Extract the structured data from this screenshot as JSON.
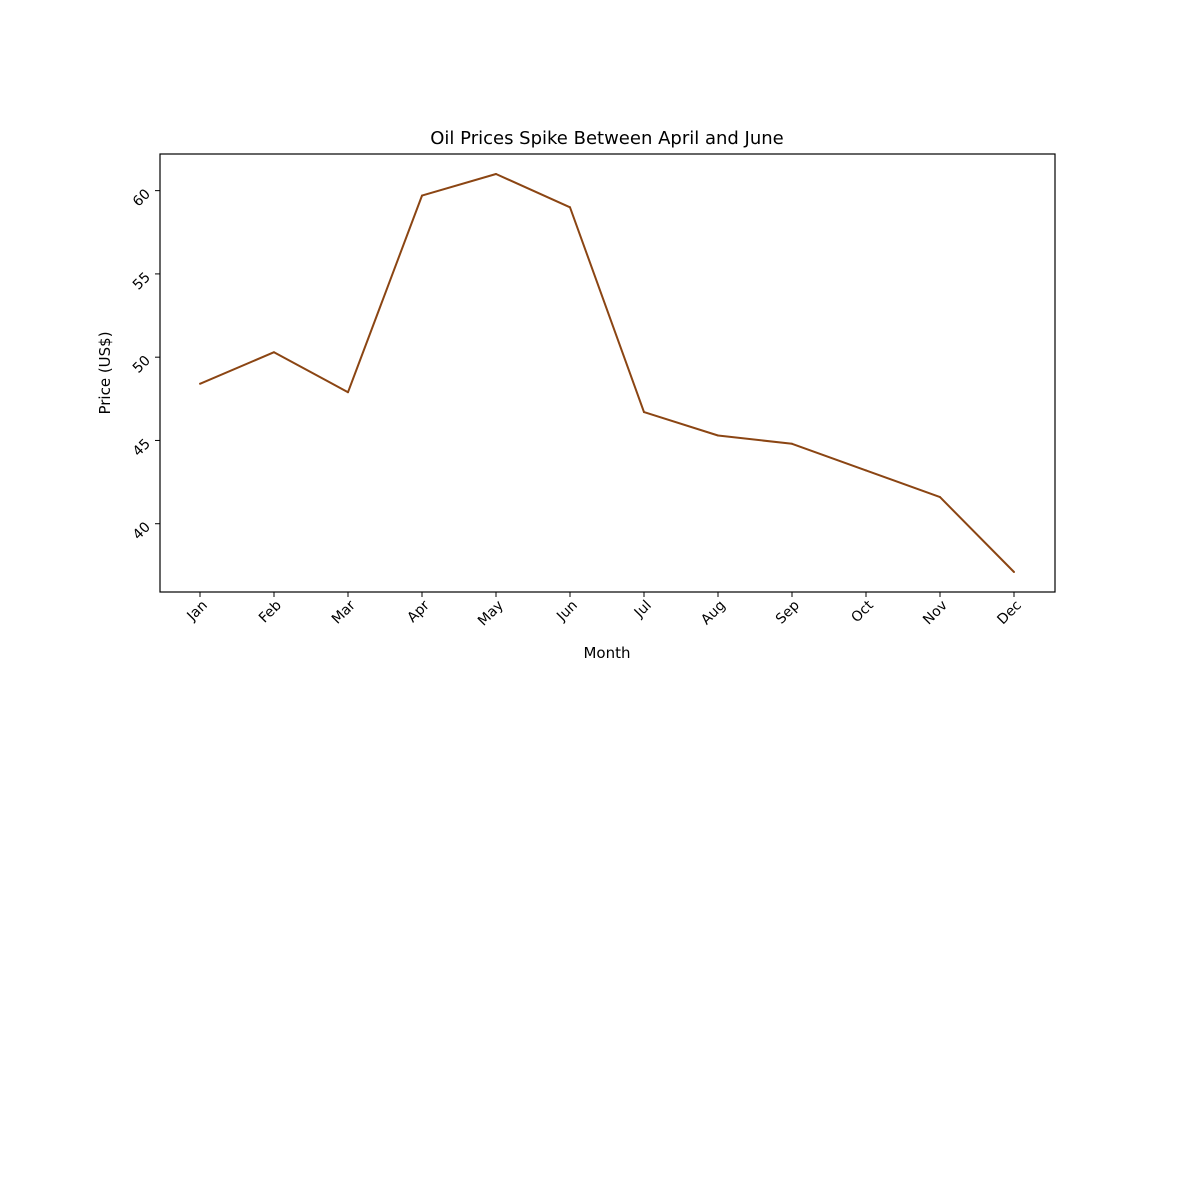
{
  "chart_data": {
    "type": "line",
    "title": "Oil Prices Spike Between April and June",
    "xlabel": "Month",
    "ylabel": "Price (US$)",
    "categories": [
      "Jan",
      "Feb",
      "Mar",
      "Apr",
      "May",
      "Jun",
      "Jul",
      "Aug",
      "Sep",
      "Oct",
      "Nov",
      "Dec"
    ],
    "series": [
      {
        "values": [
          48.4,
          50.3,
          47.9,
          59.7,
          61.0,
          59.0,
          46.7,
          45.3,
          44.8,
          43.2,
          41.6,
          37.1
        ],
        "color": "#8b4513"
      }
    ],
    "yticks": [
      40,
      45,
      50,
      55,
      60
    ],
    "ylim": [
      35.9,
      62.2
    ],
    "grid": false,
    "legend": "none"
  }
}
